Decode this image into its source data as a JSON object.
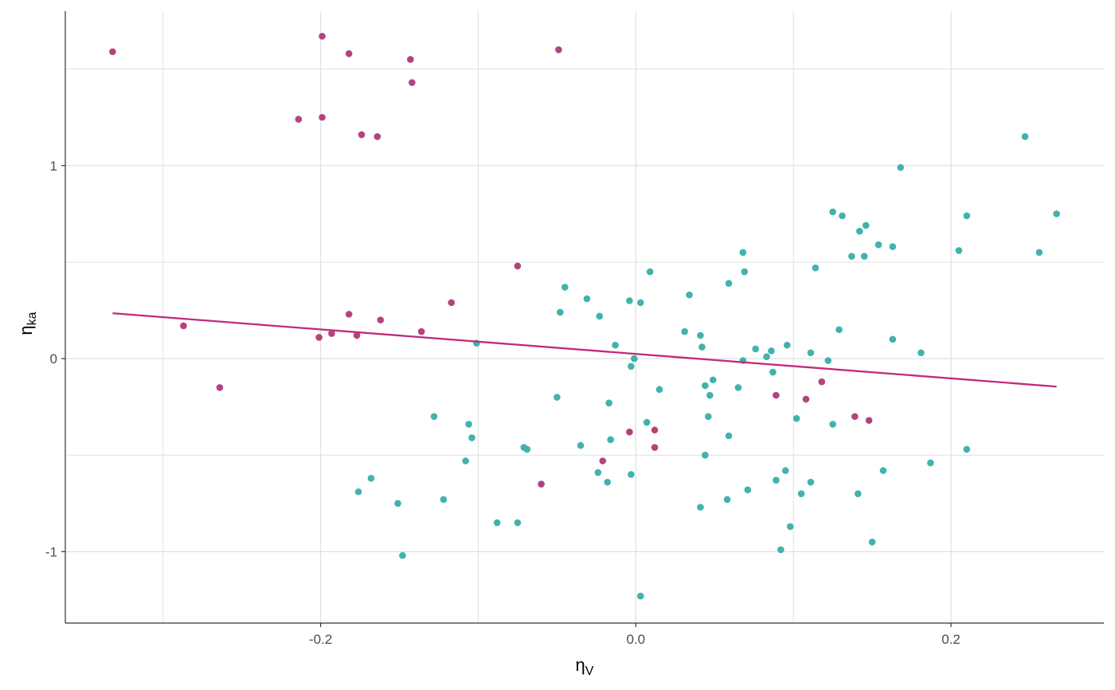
{
  "chart_data": {
    "type": "scatter",
    "title": "",
    "xlabel": "η",
    "xlabel_sub": "V",
    "ylabel": "η",
    "ylabel_sub": "ka",
    "xlim": [
      -0.362,
      0.297
    ],
    "ylim": [
      -1.37,
      1.8
    ],
    "x_ticks": [
      -0.2,
      0.0,
      0.2
    ],
    "x_tick_labels": [
      "-0.2",
      "0.0",
      "0.2"
    ],
    "y_ticks": [
      -1,
      0,
      1
    ],
    "y_tick_labels": [
      "-1",
      "0",
      "1"
    ],
    "x_minor_grid": [
      -0.3,
      -0.1,
      0.1
    ],
    "y_minor_grid": [
      -0.5,
      0.5,
      1.5
    ],
    "grid": true,
    "legend": "none",
    "colors": {
      "magenta": "#b5427f",
      "teal": "#42b2ad",
      "line": "#c2297a",
      "grid": "#e0e0e0",
      "axis": "#333333"
    },
    "series": [
      {
        "color_key": "magenta",
        "points": [
          [
            -0.332,
            1.59
          ],
          [
            -0.199,
            1.67
          ],
          [
            -0.182,
            1.58
          ],
          [
            -0.143,
            1.55
          ],
          [
            -0.142,
            1.43
          ],
          [
            -0.049,
            1.6
          ],
          [
            -0.214,
            1.24
          ],
          [
            -0.199,
            1.25
          ],
          [
            -0.174,
            1.16
          ],
          [
            -0.164,
            1.15
          ],
          [
            -0.075,
            0.48
          ],
          [
            -0.117,
            0.29
          ],
          [
            -0.182,
            0.23
          ],
          [
            -0.162,
            0.2
          ],
          [
            -0.287,
            0.17
          ],
          [
            -0.136,
            0.14
          ],
          [
            -0.193,
            0.13
          ],
          [
            -0.177,
            0.12
          ],
          [
            -0.201,
            0.11
          ],
          [
            -0.264,
            -0.15
          ],
          [
            0.118,
            -0.12
          ],
          [
            0.089,
            -0.19
          ],
          [
            0.108,
            -0.21
          ],
          [
            0.139,
            -0.3
          ],
          [
            0.148,
            -0.32
          ],
          [
            -0.004,
            -0.38
          ],
          [
            0.012,
            -0.37
          ],
          [
            0.012,
            -0.46
          ],
          [
            -0.021,
            -0.53
          ],
          [
            -0.06,
            -0.65
          ]
        ]
      },
      {
        "color_key": "teal",
        "points": [
          [
            0.247,
            1.15
          ],
          [
            0.168,
            0.99
          ],
          [
            0.267,
            0.75
          ],
          [
            0.21,
            0.74
          ],
          [
            0.125,
            0.76
          ],
          [
            0.131,
            0.74
          ],
          [
            0.146,
            0.69
          ],
          [
            0.142,
            0.66
          ],
          [
            0.154,
            0.59
          ],
          [
            0.163,
            0.58
          ],
          [
            0.137,
            0.53
          ],
          [
            0.145,
            0.53
          ],
          [
            0.205,
            0.56
          ],
          [
            0.256,
            0.55
          ],
          [
            0.068,
            0.55
          ],
          [
            0.114,
            0.47
          ],
          [
            0.069,
            0.45
          ],
          [
            0.009,
            0.45
          ],
          [
            0.059,
            0.39
          ],
          [
            -0.045,
            0.37
          ],
          [
            0.034,
            0.33
          ],
          [
            -0.031,
            0.31
          ],
          [
            -0.004,
            0.3
          ],
          [
            0.003,
            0.29
          ],
          [
            -0.048,
            0.24
          ],
          [
            -0.023,
            0.22
          ],
          [
            0.031,
            0.14
          ],
          [
            0.129,
            0.15
          ],
          [
            0.041,
            0.12
          ],
          [
            0.163,
            0.1
          ],
          [
            -0.101,
            0.08
          ],
          [
            -0.013,
            0.07
          ],
          [
            0.042,
            0.06
          ],
          [
            0.076,
            0.05
          ],
          [
            0.086,
            0.04
          ],
          [
            0.096,
            0.07
          ],
          [
            0.111,
            0.03
          ],
          [
            0.181,
            0.03
          ],
          [
            0.083,
            0.01
          ],
          [
            -0.001,
            0.0
          ],
          [
            0.068,
            -0.01
          ],
          [
            0.122,
            -0.01
          ],
          [
            -0.003,
            -0.04
          ],
          [
            0.087,
            -0.07
          ],
          [
            0.049,
            -0.11
          ],
          [
            0.044,
            -0.14
          ],
          [
            0.065,
            -0.15
          ],
          [
            0.015,
            -0.16
          ],
          [
            -0.05,
            -0.2
          ],
          [
            0.047,
            -0.19
          ],
          [
            -0.017,
            -0.23
          ],
          [
            0.046,
            -0.3
          ],
          [
            0.102,
            -0.31
          ],
          [
            -0.128,
            -0.3
          ],
          [
            -0.106,
            -0.34
          ],
          [
            0.007,
            -0.33
          ],
          [
            0.125,
            -0.34
          ],
          [
            -0.104,
            -0.41
          ],
          [
            -0.016,
            -0.42
          ],
          [
            0.059,
            -0.4
          ],
          [
            -0.035,
            -0.45
          ],
          [
            -0.071,
            -0.46
          ],
          [
            -0.069,
            -0.47
          ],
          [
            0.21,
            -0.47
          ],
          [
            0.044,
            -0.5
          ],
          [
            -0.108,
            -0.53
          ],
          [
            0.187,
            -0.54
          ],
          [
            -0.024,
            -0.59
          ],
          [
            -0.003,
            -0.6
          ],
          [
            0.095,
            -0.58
          ],
          [
            0.157,
            -0.58
          ],
          [
            -0.168,
            -0.62
          ],
          [
            -0.018,
            -0.64
          ],
          [
            0.089,
            -0.63
          ],
          [
            0.111,
            -0.64
          ],
          [
            -0.176,
            -0.69
          ],
          [
            0.071,
            -0.68
          ],
          [
            0.105,
            -0.7
          ],
          [
            0.141,
            -0.7
          ],
          [
            -0.122,
            -0.73
          ],
          [
            0.058,
            -0.73
          ],
          [
            -0.151,
            -0.75
          ],
          [
            0.041,
            -0.77
          ],
          [
            -0.088,
            -0.85
          ],
          [
            -0.075,
            -0.85
          ],
          [
            0.098,
            -0.87
          ],
          [
            0.15,
            -0.95
          ],
          [
            0.092,
            -0.99
          ],
          [
            -0.148,
            -1.02
          ],
          [
            0.003,
            -1.23
          ]
        ]
      }
    ],
    "trend_line": {
      "color_key": "line",
      "from": [
        -0.332,
        0.235
      ],
      "to": [
        0.267,
        -0.145
      ]
    }
  }
}
